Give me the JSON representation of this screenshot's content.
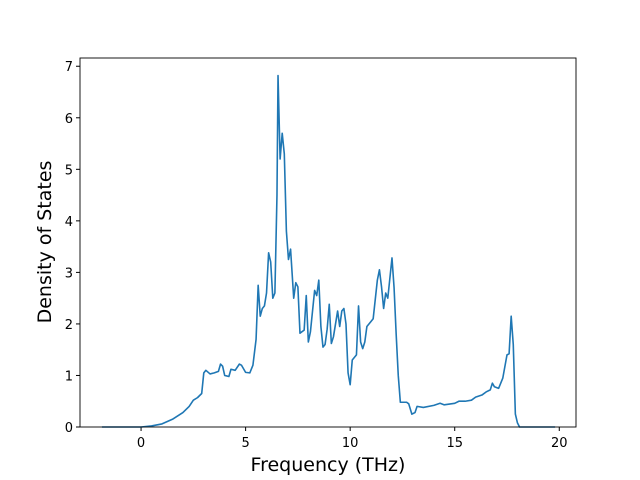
{
  "chart_data": {
    "type": "line",
    "xlabel": "Frequency (THz)",
    "ylabel": "Density of States",
    "x": [
      -1.87,
      0,
      0.5,
      1,
      1.5,
      2,
      2.3,
      2.5,
      2.7,
      2.9,
      3.0,
      3.1,
      3.3,
      3.5,
      3.7,
      3.8,
      3.9,
      4.0,
      4.2,
      4.3,
      4.5,
      4.7,
      4.8,
      5.0,
      5.2,
      5.35,
      5.5,
      5.6,
      5.7,
      5.8,
      5.9,
      6.0,
      6.1,
      6.2,
      6.3,
      6.4,
      6.5,
      6.55,
      6.65,
      6.75,
      6.85,
      6.95,
      7.05,
      7.15,
      7.3,
      7.4,
      7.5,
      7.6,
      7.8,
      7.9,
      8.0,
      8.1,
      8.3,
      8.4,
      8.5,
      8.6,
      8.7,
      8.8,
      8.9,
      9.0,
      9.1,
      9.2,
      9.4,
      9.5,
      9.6,
      9.7,
      9.8,
      9.9,
      10.0,
      10.1,
      10.3,
      10.4,
      10.5,
      10.6,
      10.7,
      10.8,
      11.0,
      11.1,
      11.3,
      11.4,
      11.5,
      11.6,
      11.7,
      11.8,
      12.0,
      12.1,
      12.2,
      12.3,
      12.4,
      12.7,
      12.8,
      12.95,
      13.1,
      13.2,
      13.5,
      14.0,
      14.3,
      14.5,
      15.0,
      15.2,
      15.5,
      15.8,
      16.0,
      16.3,
      16.5,
      16.7,
      16.8,
      16.9,
      17.1,
      17.3,
      17.5,
      17.6,
      17.7,
      17.8,
      17.9,
      18.0,
      18.1,
      19.8
    ],
    "series": [
      {
        "color": "#1f77b4",
        "values": [
          0,
          0,
          0.02,
          0.06,
          0.15,
          0.28,
          0.4,
          0.52,
          0.57,
          0.65,
          1.05,
          1.1,
          1.03,
          1.05,
          1.08,
          1.22,
          1.18,
          1.0,
          0.98,
          1.12,
          1.1,
          1.22,
          1.2,
          1.06,
          1.05,
          1.2,
          1.7,
          2.75,
          2.15,
          2.3,
          2.35,
          2.6,
          3.38,
          3.2,
          2.5,
          2.6,
          4.5,
          6.82,
          5.2,
          5.7,
          5.3,
          3.8,
          3.25,
          3.45,
          2.5,
          2.8,
          2.72,
          1.82,
          1.88,
          2.55,
          1.65,
          1.85,
          2.65,
          2.55,
          2.85,
          1.95,
          1.55,
          1.6,
          1.9,
          2.38,
          1.62,
          1.75,
          2.25,
          1.95,
          2.25,
          2.3,
          2.0,
          1.05,
          0.82,
          1.3,
          1.4,
          2.35,
          1.65,
          1.52,
          1.65,
          1.95,
          2.05,
          2.1,
          2.85,
          3.05,
          2.72,
          2.3,
          2.6,
          2.5,
          3.28,
          2.7,
          1.8,
          1.0,
          0.48,
          0.48,
          0.45,
          0.25,
          0.28,
          0.4,
          0.38,
          0.42,
          0.46,
          0.43,
          0.46,
          0.5,
          0.5,
          0.52,
          0.58,
          0.62,
          0.68,
          0.72,
          0.85,
          0.78,
          0.75,
          0.95,
          1.4,
          1.42,
          2.15,
          1.6,
          0.25,
          0.08,
          0,
          0
        ]
      }
    ],
    "xlim": [
      -2.92,
      20.8
    ],
    "ylim": [
      0,
      7.16
    ],
    "xticks": [
      0,
      5,
      10,
      15,
      20
    ],
    "yticks": [
      0,
      1,
      2,
      3,
      4,
      5,
      6,
      7
    ]
  }
}
